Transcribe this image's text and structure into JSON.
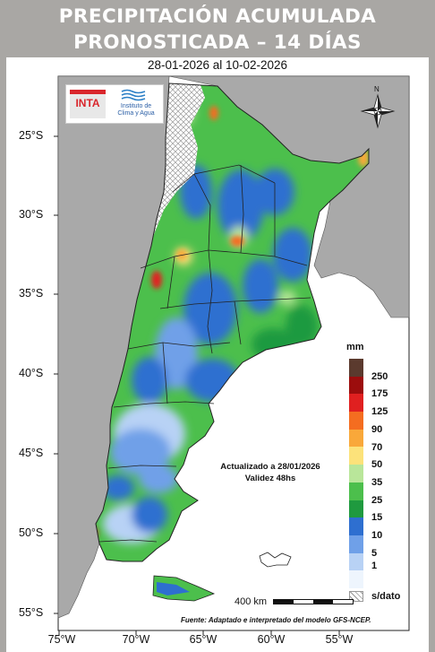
{
  "header": {
    "title_line1": "PRECIPITACIÓN ACUMULADA",
    "title_line2": "PRONOSTICADA – 14 DÍAS"
  },
  "map": {
    "date_range": "28-01-2026 al 10-02-2026",
    "lat_labels": [
      "25°S",
      "30°S",
      "35°S",
      "40°S",
      "45°S",
      "50°S",
      "55°S"
    ],
    "lon_labels": [
      "75°W",
      "70°W",
      "65°W",
      "60°W",
      "55°W"
    ],
    "update_line1": "Actualizado a 28/01/2026",
    "update_line2": "Validez 48hs",
    "scale_label": "400 km",
    "source": "Fuente: Adaptado e interpretado del modelo GFS-NCEP.",
    "north_label": "N"
  },
  "logo": {
    "inta": "INTA",
    "institute_line1": "Instituto de",
    "institute_line2": "Clima y Agua"
  },
  "legend": {
    "unit": "mm",
    "labels": [
      "250",
      "175",
      "125",
      "90",
      "70",
      "50",
      "35",
      "25",
      "15",
      "10",
      "5",
      "1",
      "s/dato"
    ],
    "colors": [
      "#5b3a2e",
      "#9c0d0d",
      "#e02020",
      "#f46d20",
      "#f9a83a",
      "#fce27a",
      "#b9e69a",
      "#4cbf4c",
      "#1f9a3f",
      "#2e6fd0",
      "#6fa0e8",
      "#b8d2f5",
      "#eef5fd"
    ]
  }
}
